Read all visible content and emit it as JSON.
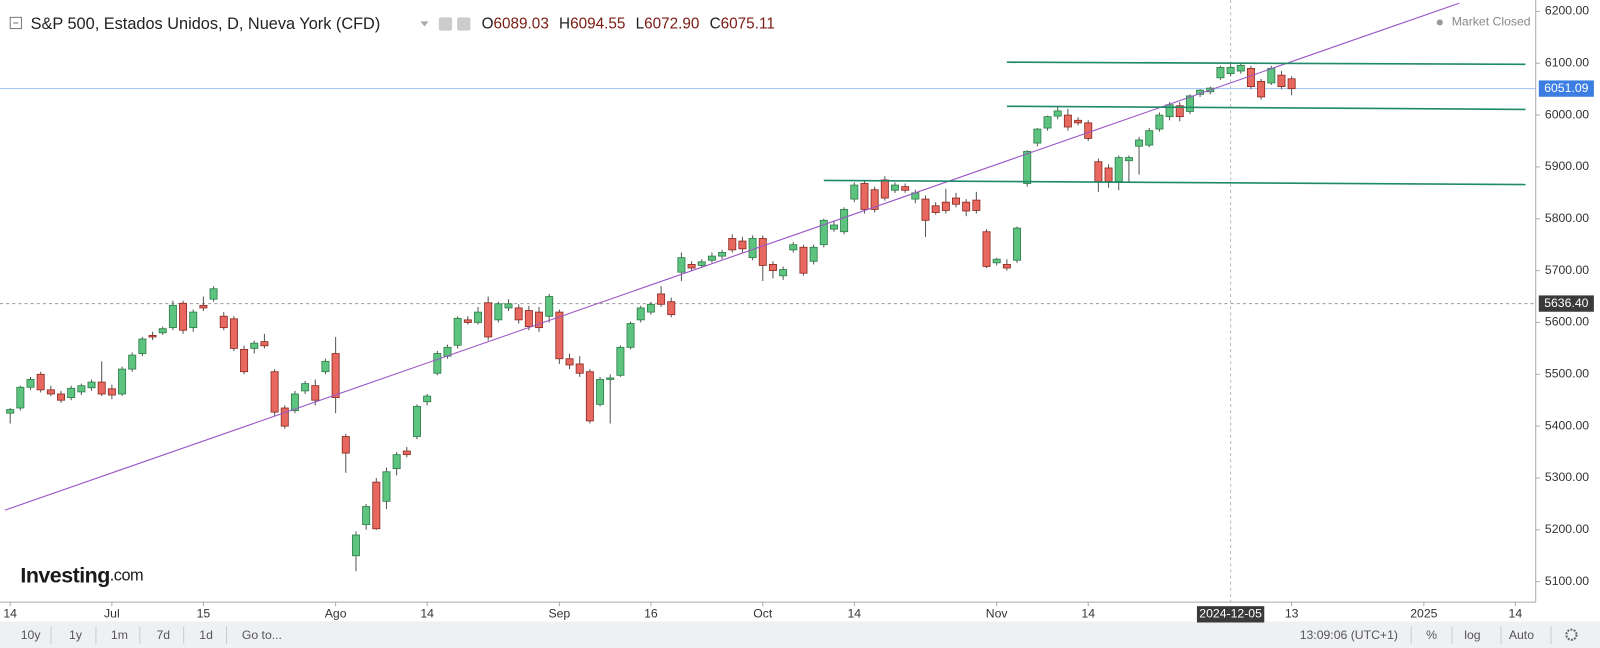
{
  "chart_data": {
    "type": "candlestick",
    "title": "S&P 500, Estados Unidos, D, Nueva York (CFD)",
    "ohlc_header": [
      {
        "key": "O",
        "text": "6089.03"
      },
      {
        "key": "H",
        "text": "6094.55"
      },
      {
        "key": "L",
        "text": "6072.90"
      },
      {
        "key": "C",
        "text": "6075.11"
      }
    ],
    "status": "Market Closed",
    "watermark": [
      "Investing",
      ".com"
    ],
    "up_color": "#5cc47e",
    "down_color": "#e8685f",
    "x": [
      0,
      1,
      2,
      3,
      4,
      5,
      6,
      7,
      8,
      9,
      10,
      11,
      12,
      13,
      14,
      15,
      16,
      17,
      18,
      19,
      20,
      21,
      22,
      23,
      24,
      25,
      26,
      27,
      28,
      29,
      30,
      31,
      32,
      33,
      34,
      35,
      36,
      37,
      38,
      39,
      40,
      41,
      42,
      43,
      44,
      45,
      46,
      47,
      48,
      49,
      50,
      51,
      52,
      53,
      54,
      55,
      56,
      57,
      58,
      59,
      60,
      61,
      62,
      63,
      64,
      65,
      66,
      67,
      68,
      69,
      70,
      71,
      72,
      73,
      74,
      75,
      76,
      77,
      78,
      79,
      80,
      81,
      82,
      83,
      84,
      85,
      86,
      87,
      88,
      89,
      90,
      91,
      92,
      93,
      94,
      95,
      96,
      97,
      98,
      99,
      100,
      101,
      102,
      103,
      104,
      105,
      106,
      107,
      108,
      109,
      110,
      111,
      112,
      113,
      114,
      115,
      116,
      117,
      118,
      119,
      120,
      121,
      122,
      123,
      124,
      125,
      126
    ],
    "open": [
      5425,
      5435,
      5475,
      5500,
      5470,
      5462,
      5455,
      5466,
      5474,
      5485,
      5472,
      5462,
      5510,
      5540,
      5575,
      5580,
      5590,
      5637,
      5590,
      5633,
      5645,
      5612,
      5607,
      5548,
      5550,
      5563,
      5505,
      5435,
      5430,
      5468,
      5478,
      5505,
      5540,
      5380,
      5150,
      5210,
      5292,
      5255,
      5318,
      5352,
      5380,
      5447,
      5502,
      5535,
      5556,
      5605,
      5600,
      5638,
      5605,
      5628,
      5628,
      5623,
      5620,
      5612,
      5620,
      5530,
      5520,
      5505,
      5442,
      5490,
      5498,
      5552,
      5605,
      5620,
      5655,
      5640,
      5697,
      5712,
      5710,
      5720,
      5728,
      5762,
      5757,
      5725,
      5762,
      5712,
      5690,
      5740,
      5745,
      5718,
      5750,
      5780,
      5775,
      5838,
      5868,
      5856,
      5875,
      5855,
      5862,
      5838,
      5838,
      5825,
      5832,
      5840,
      5832,
      5836,
      5775,
      5715,
      5712,
      5720,
      5868,
      5946,
      5975,
      5998,
      6000,
      5990,
      5985,
      5910,
      5898,
      5872,
      5912,
      5940,
      5942,
      5973,
      5997,
      6018,
      6007,
      6040,
      6045,
      6072,
      6080,
      6085,
      6090,
      6065,
      6062,
      6077,
      6070
    ],
    "high": [
      5435,
      5478,
      5495,
      5505,
      5478,
      5468,
      5478,
      5482,
      5490,
      5525,
      5480,
      5515,
      5542,
      5572,
      5582,
      5592,
      5642,
      5642,
      5625,
      5650,
      5670,
      5620,
      5612,
      5555,
      5565,
      5578,
      5510,
      5440,
      5468,
      5487,
      5490,
      5530,
      5572,
      5385,
      5197,
      5250,
      5300,
      5320,
      5350,
      5360,
      5442,
      5462,
      5545,
      5557,
      5612,
      5612,
      5630,
      5650,
      5640,
      5645,
      5635,
      5632,
      5630,
      5655,
      5625,
      5540,
      5535,
      5510,
      5495,
      5500,
      5556,
      5602,
      5632,
      5640,
      5670,
      5648,
      5735,
      5718,
      5722,
      5735,
      5740,
      5770,
      5765,
      5768,
      5768,
      5718,
      5708,
      5755,
      5750,
      5750,
      5800,
      5795,
      5822,
      5870,
      5875,
      5862,
      5882,
      5870,
      5868,
      5856,
      5845,
      5832,
      5858,
      5850,
      5838,
      5852,
      5780,
      5725,
      5722,
      5785,
      5932,
      5975,
      5999,
      6018,
      6012,
      5996,
      5990,
      5916,
      5905,
      5922,
      5922,
      5958,
      5975,
      6005,
      6025,
      6025,
      6040,
      6050,
      6055,
      6095,
      6098,
      6100,
      6095,
      6070,
      6095,
      6085,
      6075
    ],
    "low": [
      5405,
      5430,
      5470,
      5465,
      5458,
      5445,
      5450,
      5460,
      5468,
      5458,
      5452,
      5458,
      5505,
      5535,
      5566,
      5576,
      5585,
      5578,
      5582,
      5622,
      5640,
      5585,
      5545,
      5500,
      5540,
      5550,
      5420,
      5395,
      5425,
      5462,
      5440,
      5500,
      5425,
      5310,
      5120,
      5200,
      5200,
      5240,
      5305,
      5340,
      5375,
      5440,
      5498,
      5530,
      5550,
      5596,
      5596,
      5565,
      5600,
      5622,
      5598,
      5585,
      5582,
      5600,
      5520,
      5510,
      5495,
      5405,
      5438,
      5405,
      5495,
      5548,
      5600,
      5615,
      5630,
      5610,
      5680,
      5700,
      5705,
      5715,
      5722,
      5735,
      5735,
      5720,
      5680,
      5685,
      5682,
      5735,
      5690,
      5712,
      5745,
      5775,
      5770,
      5832,
      5810,
      5812,
      5835,
      5850,
      5850,
      5830,
      5765,
      5808,
      5810,
      5822,
      5805,
      5810,
      5705,
      5710,
      5700,
      5715,
      5862,
      5940,
      5970,
      5992,
      5970,
      5980,
      5950,
      5852,
      5860,
      5855,
      5870,
      5885,
      5938,
      5968,
      5990,
      5988,
      6002,
      6035,
      6040,
      6068,
      6075,
      6080,
      6050,
      6030,
      6058,
      6050,
      6038
    ],
    "close": [
      5432,
      5475,
      5490,
      5470,
      5462,
      5450,
      5473,
      5478,
      5485,
      5462,
      5460,
      5510,
      5537,
      5568,
      5572,
      5588,
      5633,
      5585,
      5620,
      5628,
      5665,
      5590,
      5550,
      5505,
      5560,
      5555,
      5427,
      5400,
      5462,
      5482,
      5450,
      5525,
      5455,
      5348,
      5190,
      5245,
      5202,
      5312,
      5345,
      5345,
      5438,
      5458,
      5540,
      5552,
      5608,
      5600,
      5620,
      5572,
      5636,
      5636,
      5605,
      5592,
      5590,
      5650,
      5530,
      5518,
      5502,
      5410,
      5490,
      5493,
      5552,
      5598,
      5628,
      5635,
      5635,
      5615,
      5725,
      5705,
      5717,
      5728,
      5735,
      5740,
      5742,
      5762,
      5710,
      5700,
      5702,
      5750,
      5695,
      5745,
      5797,
      5788,
      5818,
      5865,
      5818,
      5818,
      5840,
      5865,
      5855,
      5850,
      5797,
      5812,
      5816,
      5828,
      5815,
      5816,
      5708,
      5722,
      5705,
      5782,
      5930,
      5973,
      5997,
      6008,
      5977,
      5985,
      5955,
      5872,
      5872,
      5918,
      5918,
      5952,
      5970,
      6000,
      6020,
      5997,
      6037,
      6048,
      6052,
      6092,
      6092,
      6096,
      6055,
      6035,
      6090,
      6055,
      6051
    ],
    "xlim": [
      -1,
      150
    ],
    "xticks": [
      {
        "value": 0,
        "label": "14"
      },
      {
        "value": 10,
        "label": "Jul"
      },
      {
        "value": 19,
        "label": "15"
      },
      {
        "value": 32,
        "label": "Ago"
      },
      {
        "value": 41,
        "label": "14"
      },
      {
        "value": 54,
        "label": "Sep"
      },
      {
        "value": 63,
        "label": "16"
      },
      {
        "value": 74,
        "label": "Oct"
      },
      {
        "value": 83,
        "label": "14"
      },
      {
        "value": 97,
        "label": "Nov"
      },
      {
        "value": 106,
        "label": "14"
      },
      {
        "value": 126,
        "label": "13"
      },
      {
        "value": 139,
        "label": "2025"
      },
      {
        "value": 148,
        "label": "14"
      }
    ],
    "ylim": [
      5060.6,
      6222
    ],
    "yticks": [
      {
        "value": 5100,
        "label": "5100.00"
      },
      {
        "value": 5200,
        "label": "5200.00"
      },
      {
        "value": 5300,
        "label": "5300.00"
      },
      {
        "value": 5400,
        "label": "5400.00"
      },
      {
        "value": 5500,
        "label": "5500.00"
      },
      {
        "value": 5600,
        "label": "5600.00"
      },
      {
        "value": 5700,
        "label": "5700.00"
      },
      {
        "value": 5800,
        "label": "5800.00"
      },
      {
        "value": 5900,
        "label": "5900.00"
      },
      {
        "value": 6000,
        "label": "6000.00"
      },
      {
        "value": 6100,
        "label": "6100.00"
      },
      {
        "value": 6200,
        "label": "6200.00"
      }
    ],
    "last_price": 6051.09,
    "crosshair": {
      "x": {
        "value": 120,
        "label": "2024-12-05"
      },
      "y": {
        "value": 5636.4,
        "label": "5636.40"
      }
    },
    "trendlines": [
      {
        "color": "#9b59c6",
        "x": [
          -0.5,
          142.5
        ],
        "y": [
          5238,
          6216
        ]
      },
      {
        "color": "#1f8a6a",
        "x": [
          98,
          149
        ],
        "y": [
          6102,
          6098
        ]
      },
      {
        "color": "#1f8a6a",
        "x": [
          98,
          149
        ],
        "y": [
          6017,
          6011
        ]
      },
      {
        "color": "#1f8a6a",
        "x": [
          80,
          149
        ],
        "y": [
          5874,
          5866
        ]
      }
    ]
  },
  "toolbar": {
    "ranges": [
      "10y",
      "1y",
      "1m",
      "7d",
      "1d"
    ],
    "goto": "Go to...",
    "time": "13:09:06 (UTC+1)",
    "options": [
      "%",
      "log",
      "Auto"
    ]
  }
}
